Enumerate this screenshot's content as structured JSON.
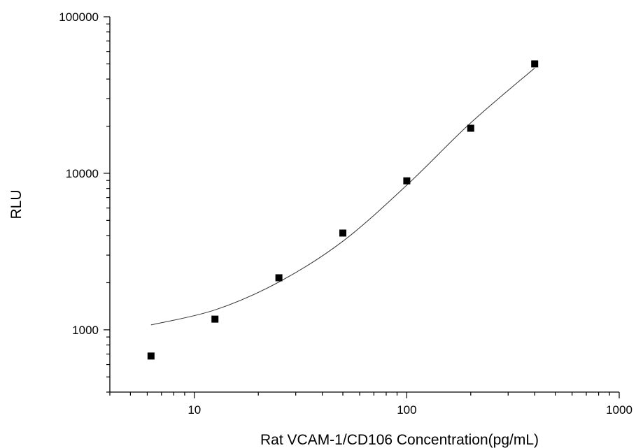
{
  "chart_data": {
    "type": "scatter",
    "title": "",
    "xlabel": "Rat VCAM-1/CD106 Concentration(pg/mL)",
    "ylabel": "RLU",
    "x_scale": "log",
    "y_scale": "log",
    "xlim": [
      4,
      1000
    ],
    "ylim": [
      400,
      100000
    ],
    "x_ticks": [
      {
        "value": 10,
        "label": "10"
      },
      {
        "value": 100,
        "label": "100"
      },
      {
        "value": 1000,
        "label": "1000"
      }
    ],
    "y_ticks": [
      {
        "value": 1000,
        "label": "1000"
      },
      {
        "value": 10000,
        "label": "10000"
      },
      {
        "value": 100000,
        "label": "100000"
      }
    ],
    "grid": false,
    "legend": "none",
    "series": [
      {
        "type": "scatter",
        "marker": "square",
        "x": [
          6.25,
          12.5,
          25,
          50,
          100,
          200,
          400
        ],
        "y": [
          680,
          1170,
          2150,
          4150,
          8950,
          19400,
          50000
        ]
      },
      {
        "type": "line",
        "x": [
          6.25,
          12.5,
          25,
          50,
          100,
          200,
          400
        ],
        "y": [
          1075,
          1340,
          2020,
          3680,
          8400,
          21000,
          47000
        ]
      }
    ],
    "colors": {
      "points": "#000000",
      "fit_line": "#333333",
      "axes": "#000000"
    }
  }
}
